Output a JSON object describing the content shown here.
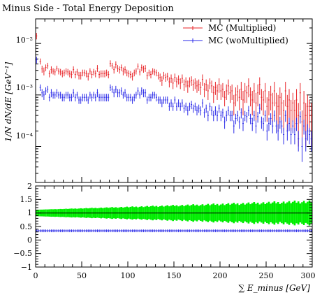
{
  "chart_data": [
    {
      "type": "scatter",
      "title": "Minus Side - Total Energy Deposition",
      "ylabel": "1/N dN/dE [GeV⁻¹]",
      "xlabel": "",
      "xlim": [
        0,
        300
      ],
      "ylim": [
        2e-05,
        0.03
      ],
      "yscale": "log",
      "ytick_labels": [
        "10⁻⁴",
        "10⁻³",
        "10⁻²"
      ],
      "legend_position": "top-right",
      "series": [
        {
          "name": "MC (Multiplied)",
          "color": "#e8262a",
          "x": [
            1,
            5,
            7,
            9,
            11,
            13,
            15,
            17,
            19,
            21,
            23,
            25,
            27,
            29,
            31,
            33,
            35,
            37,
            39,
            41,
            43,
            45,
            47,
            49,
            51,
            53,
            55,
            57,
            59,
            61,
            63,
            65,
            67,
            69,
            71,
            73,
            75,
            77,
            79,
            81,
            83,
            85,
            87,
            89,
            91,
            93,
            95,
            97,
            99,
            101,
            103,
            105,
            107,
            109,
            111,
            113,
            115,
            117,
            119,
            121,
            123,
            125,
            127,
            129,
            131,
            133,
            135,
            137,
            139,
            141,
            143,
            145,
            147,
            149,
            151,
            153,
            155,
            157,
            159,
            161,
            163,
            165,
            167,
            169,
            171,
            173,
            175,
            177,
            179,
            181,
            183,
            185,
            187,
            189,
            191,
            193,
            195,
            197,
            199,
            201,
            203,
            205,
            207,
            209,
            211,
            213,
            215,
            217,
            219,
            221,
            223,
            225,
            227,
            229,
            231,
            233,
            235,
            237,
            239,
            241,
            243,
            245,
            247,
            249,
            251,
            253,
            255,
            257,
            259,
            261,
            263,
            265,
            267,
            269,
            271,
            273,
            275,
            277,
            279,
            281,
            283,
            285,
            287,
            289,
            291,
            293,
            295,
            297,
            299
          ],
          "values": [
            0.014,
            0.0045,
            0.0032,
            0.0029,
            0.0034,
            0.0037,
            0.0026,
            0.0031,
            0.0029,
            0.0028,
            0.0033,
            0.0029,
            0.0028,
            0.0026,
            0.0027,
            0.0029,
            0.0028,
            0.0026,
            0.0025,
            0.0031,
            0.0025,
            0.0028,
            0.0024,
            0.0024,
            0.0027,
            0.0027,
            0.0026,
            0.0023,
            0.0029,
            0.0025,
            0.0028,
            0.0026,
            0.0033,
            0.0025,
            0.0026,
            0.0026,
            0.0026,
            0.0027,
            0.0025,
            0.0041,
            0.0037,
            0.0031,
            0.0039,
            0.0033,
            0.0031,
            0.0034,
            0.0029,
            0.0031,
            0.0027,
            0.0026,
            0.0025,
            0.0023,
            0.0027,
            0.0029,
            0.0036,
            0.0028,
            0.0034,
            0.0032,
            0.0033,
            0.0024,
            0.0027,
            0.0025,
            0.0029,
            0.0028,
            0.0027,
            0.0024,
            0.0022,
            0.0019,
            0.0024,
            0.0022,
            0.0023,
            0.0018,
            0.0021,
            0.0017,
            0.0022,
            0.0018,
            0.002,
            0.0017,
            0.0021,
            0.0016,
            0.0018,
            0.0015,
            0.0018,
            0.0019,
            0.0016,
            0.0017,
            0.0015,
            0.0016,
            0.0014,
            0.002,
            0.0013,
            0.0016,
            0.0012,
            0.0017,
            0.0015,
            0.0011,
            0.0014,
            0.0012,
            0.0016,
            0.0012,
            0.0013,
            0.0009,
            0.0012,
            0.0015,
            0.0011,
            0.0012,
            0.0007,
            0.001,
            0.00115,
            0.0009,
            0.0013,
            0.0008,
            0.0012,
            0.0011,
            0.0015,
            0.001,
            0.0008,
            0.0012,
            0.0007,
            0.0011,
            0.0016,
            0.0009,
            0.0008,
            0.0012,
            0.0006,
            0.0008,
            0.001,
            0.0007,
            0.0012,
            0.0007,
            0.0006,
            0.0009,
            0.0007,
            0.0005,
            0.0012,
            0.0006,
            0.0008,
            0.0005,
            0.0007,
            0.0005,
            0.0008,
            0.0004,
            0.0011,
            0.0003,
            0.0007,
            0.0004,
            0.0006,
            0.0005,
            0.0004
          ],
          "errors": [
            0.002,
            0.0006,
            0.0005,
            0.0005,
            0.0005,
            0.0005,
            0.0004,
            0.0005,
            0.0004,
            0.0004,
            0.0004,
            0.0004,
            0.0004,
            0.0004,
            0.0004,
            0.0004,
            0.0004,
            0.0004,
            0.0004,
            0.0005,
            0.0004,
            0.0004,
            0.0004,
            0.0004,
            0.0004,
            0.0004,
            0.0004,
            0.0004,
            0.0004,
            0.0004,
            0.0004,
            0.0004,
            0.0005,
            0.0004,
            0.0004,
            0.0004,
            0.0004,
            0.0004,
            0.0004,
            0.0006,
            0.0005,
            0.0005,
            0.0006,
            0.0005,
            0.0005,
            0.0005,
            0.0005,
            0.0005,
            0.0004,
            0.0004,
            0.0004,
            0.0004,
            0.0004,
            0.0004,
            0.0005,
            0.0004,
            0.0005,
            0.0005,
            0.0005,
            0.0004,
            0.0004,
            0.0004,
            0.0004,
            0.0004,
            0.0004,
            0.0004,
            0.0004,
            0.0004,
            0.0004,
            0.0004,
            0.0004,
            0.0004,
            0.0004,
            0.0004,
            0.0004,
            0.0004,
            0.0004,
            0.0004,
            0.0004,
            0.0004,
            0.0004,
            0.0004,
            0.0004,
            0.0004,
            0.0004,
            0.0004,
            0.0004,
            0.0004,
            0.0004,
            0.0005,
            0.0004,
            0.0004,
            0.0004,
            0.0004,
            0.0004,
            0.0004,
            0.0004,
            0.0004,
            0.0005,
            0.0004,
            0.0004,
            0.0003,
            0.0004,
            0.0005,
            0.0004,
            0.0004,
            0.0003,
            0.0004,
            0.0004,
            0.0004,
            0.0005,
            0.0004,
            0.0005,
            0.0004,
            0.0006,
            0.0004,
            0.0004,
            0.0005,
            0.0004,
            0.0005,
            0.0006,
            0.0004,
            0.0004,
            0.0005,
            0.0003,
            0.0004,
            0.0005,
            0.0004,
            0.0006,
            0.0004,
            0.0004,
            0.0005,
            0.0004,
            0.0003,
            0.0006,
            0.0004,
            0.0005,
            0.0003,
            0.0004,
            0.0003,
            0.0005,
            0.0003,
            0.0006,
            0.0002,
            0.0005,
            0.0003,
            0.0004,
            0.0003,
            0.0003
          ]
        },
        {
          "name": "MC (woMultiplied)",
          "color": "#2a2ae8",
          "x": [
            1,
            5,
            7,
            9,
            11,
            13,
            15,
            17,
            19,
            21,
            23,
            25,
            27,
            29,
            31,
            33,
            35,
            37,
            39,
            41,
            43,
            45,
            47,
            49,
            51,
            53,
            55,
            57,
            59,
            61,
            63,
            65,
            67,
            69,
            71,
            73,
            75,
            77,
            79,
            81,
            83,
            85,
            87,
            89,
            91,
            93,
            95,
            97,
            99,
            101,
            103,
            105,
            107,
            109,
            111,
            113,
            115,
            117,
            119,
            121,
            123,
            125,
            127,
            129,
            131,
            133,
            135,
            137,
            139,
            141,
            143,
            145,
            147,
            149,
            151,
            153,
            155,
            157,
            159,
            161,
            163,
            165,
            167,
            169,
            171,
            173,
            175,
            177,
            179,
            181,
            183,
            185,
            187,
            189,
            191,
            193,
            195,
            197,
            199,
            201,
            203,
            205,
            207,
            209,
            211,
            213,
            215,
            217,
            219,
            221,
            223,
            225,
            227,
            229,
            231,
            233,
            235,
            237,
            239,
            241,
            243,
            245,
            247,
            249,
            251,
            253,
            255,
            257,
            259,
            261,
            263,
            265,
            267,
            269,
            271,
            273,
            275,
            277,
            279,
            281,
            283,
            285,
            287,
            289,
            291,
            293,
            295,
            297,
            299
          ],
          "values": [
            0.0048,
            0.0014,
            0.0011,
            0.001,
            0.0012,
            0.0013,
            0.0009,
            0.0011,
            0.001,
            0.001,
            0.0011,
            0.001,
            0.001,
            0.0009,
            0.0009,
            0.001,
            0.001,
            0.0009,
            0.0009,
            0.0011,
            0.0009,
            0.001,
            0.0008,
            0.0008,
            0.0009,
            0.0009,
            0.0009,
            0.0008,
            0.001,
            0.0009,
            0.001,
            0.0009,
            0.0011,
            0.0009,
            0.0009,
            0.0009,
            0.0009,
            0.0009,
            0.0009,
            0.0014,
            0.0013,
            0.0011,
            0.0013,
            0.0011,
            0.0011,
            0.0012,
            0.001,
            0.0011,
            0.0009,
            0.0009,
            0.0009,
            0.0008,
            0.0009,
            0.001,
            0.0012,
            0.001,
            0.0012,
            0.0011,
            0.0011,
            0.0008,
            0.0009,
            0.0009,
            0.001,
            0.001,
            0.0009,
            0.0008,
            0.0008,
            0.0007,
            0.0008,
            0.0008,
            0.0008,
            0.0006,
            0.0007,
            0.0006,
            0.0008,
            0.0006,
            0.0007,
            0.0006,
            0.0007,
            0.00055,
            0.0006,
            0.0005,
            0.0006,
            0.00065,
            0.00055,
            0.0006,
            0.0005,
            0.00055,
            0.0005,
            0.0007,
            0.00045,
            0.00055,
            0.0004,
            0.0006,
            0.0005,
            0.0004,
            0.0005,
            0.0004,
            0.00055,
            0.0004,
            0.00045,
            0.0003,
            0.0004,
            0.0005,
            0.0004,
            0.0004,
            0.00025,
            0.00035,
            0.0004,
            0.0003,
            0.00045,
            0.00028,
            0.0004,
            0.00038,
            0.0005,
            0.00035,
            0.00028,
            0.0004,
            0.00025,
            0.00038,
            0.00055,
            0.0003,
            0.00028,
            0.0004,
            0.0002,
            0.00028,
            0.00035,
            0.00025,
            0.0004,
            0.00025,
            0.0002,
            0.0003,
            0.00025,
            0.00017,
            0.0004,
            0.0002,
            0.00028,
            0.00017,
            0.00025,
            0.00017,
            0.00028,
            0.00014,
            0.00038,
            0.0001,
            0.00025,
            0.00014,
            0.0002,
            0.00017,
            0.00014
          ],
          "errors": [
            0.0007,
            0.0002,
            0.0002,
            0.0002,
            0.0002,
            0.0002,
            0.00015,
            0.0002,
            0.00015,
            0.00015,
            0.0002,
            0.00015,
            0.00015,
            0.00015,
            0.00015,
            0.00015,
            0.00015,
            0.00015,
            0.00015,
            0.0002,
            0.00015,
            0.00015,
            0.00013,
            0.00013,
            0.00015,
            0.00015,
            0.00015,
            0.00013,
            0.00015,
            0.00015,
            0.00015,
            0.00015,
            0.0002,
            0.00015,
            0.00015,
            0.00015,
            0.00015,
            0.00015,
            0.00015,
            0.0002,
            0.0002,
            0.0002,
            0.0002,
            0.0002,
            0.0002,
            0.0002,
            0.00015,
            0.0002,
            0.00015,
            0.00015,
            0.00015,
            0.00013,
            0.00015,
            0.00015,
            0.0002,
            0.00015,
            0.0002,
            0.0002,
            0.0002,
            0.00013,
            0.00015,
            0.00015,
            0.00015,
            0.00015,
            0.00015,
            0.00013,
            0.00013,
            0.00012,
            0.00013,
            0.00013,
            0.00013,
            0.00011,
            0.00012,
            0.00011,
            0.00013,
            0.00011,
            0.00012,
            0.00011,
            0.00012,
            0.0001,
            0.00011,
            0.0001,
            0.00011,
            0.00012,
            0.0001,
            0.00011,
            0.0001,
            0.0001,
            0.0001,
            0.00013,
            9e-05,
            0.0001,
            9e-05,
            0.00011,
            0.0001,
            9e-05,
            0.0001,
            9e-05,
            0.0001,
            9e-05,
            9e-05,
            8e-05,
            9e-05,
            0.0001,
            9e-05,
            9e-05,
            7e-05,
            8e-05,
            9e-05,
            8e-05,
            0.0001,
            8e-05,
            9e-05,
            9e-05,
            0.00011,
            8e-05,
            8e-05,
            9e-05,
            7e-05,
            9e-05,
            0.00012,
            8e-05,
            8e-05,
            0.0001,
            7e-05,
            8e-05,
            9e-05,
            7e-05,
            0.0001,
            7e-05,
            7e-05,
            8e-05,
            7e-05,
            6e-05,
            0.0001,
            7e-05,
            8e-05,
            6e-05,
            7e-05,
            6e-05,
            8e-05,
            6e-05,
            0.0001,
            5e-05,
            8e-05,
            6e-05,
            7e-05,
            6e-05,
            6e-05
          ]
        }
      ]
    },
    {
      "type": "scatter",
      "xlabel": "∑ E_minus [GeV]",
      "xlim": [
        0,
        300
      ],
      "ylim": [
        -1,
        2
      ],
      "ytick_labels": [
        "−1",
        "−0.5",
        "0",
        "0.5",
        "1",
        "1.5",
        "2"
      ],
      "xtick_labels": [
        "0",
        "50",
        "100",
        "150",
        "200",
        "250",
        "300"
      ],
      "reference_line": 1,
      "band_color": "#00ee00",
      "series": [
        {
          "name": "ratio band",
          "x_start": 0,
          "x_end": 300,
          "bin_width": 2,
          "center": 1.0,
          "half_width_start": 0.12,
          "half_width_end": 0.42
        },
        {
          "name": "ratio",
          "color": "#2a2ae8",
          "x_start": 1,
          "x_end": 299,
          "step": 2,
          "value": 0.34,
          "error": 0.05
        }
      ]
    }
  ]
}
